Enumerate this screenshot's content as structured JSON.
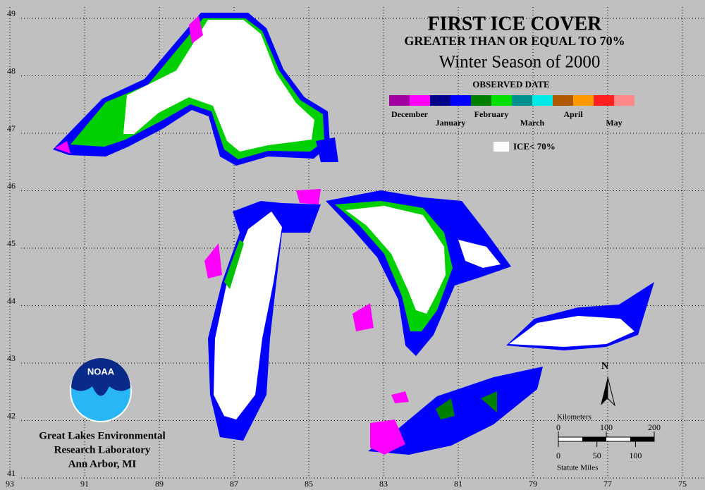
{
  "header": {
    "title": "FIRST ICE COVER",
    "subtitle": "GREATER THAN OR EQUAL TO 70%",
    "season": "Winter Season of 2000"
  },
  "legend": {
    "title": "OBSERVED DATE",
    "entries": [
      {
        "label": "December",
        "colors": [
          "#a0009f",
          "#ff00ff"
        ]
      },
      {
        "label": "January",
        "colors": [
          "#00008b",
          "#0000ff"
        ]
      },
      {
        "label": "February",
        "colors": [
          "#008000",
          "#00e000"
        ]
      },
      {
        "label": "March",
        "colors": [
          "#009090",
          "#00e8e8"
        ]
      },
      {
        "label": "April",
        "colors": [
          "#b05800",
          "#ff9900"
        ]
      },
      {
        "label": "May",
        "colors": [
          "#ff2020",
          "#ff8888"
        ]
      }
    ],
    "no_ice": "ICE< 70%"
  },
  "map": {
    "latitudes": [
      49,
      48,
      47,
      46,
      45,
      44,
      43,
      42,
      41
    ],
    "longitudes": [
      93,
      91,
      89,
      87,
      85,
      83,
      81,
      79,
      77,
      75
    ],
    "north": "N"
  },
  "logo": {
    "text": "NOAA"
  },
  "credit": {
    "line1": "Great Lakes Environmental",
    "line2": "Research Laboratory",
    "line3": "Ann Arbor, MI"
  },
  "scale": {
    "km_label": "Kilometers",
    "km_ticks": [
      0,
      100,
      200
    ],
    "mile_ticks": [
      0,
      50,
      100
    ],
    "mile_label": "Statute Miles"
  }
}
